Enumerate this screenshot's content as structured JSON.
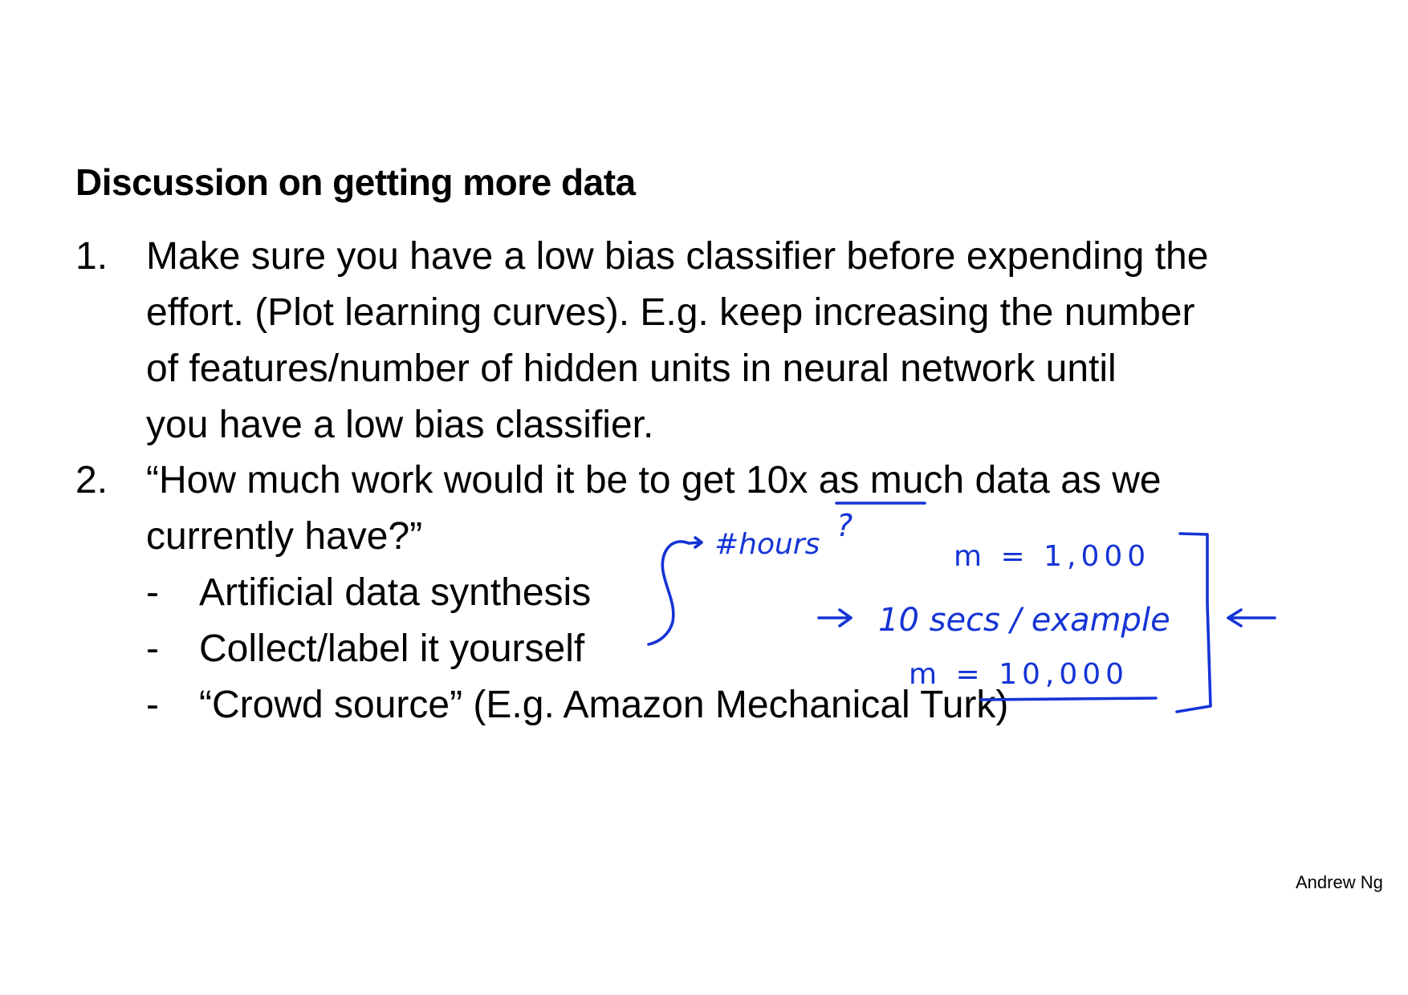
{
  "title": "Discussion on getting more data",
  "items": [
    {
      "number": "1.",
      "lines": [
        "Make sure you have a low bias classifier before expending the",
        "effort. (Plot learning curves). E.g. keep increasing the number",
        "of features/number of hidden units in neural network until",
        "you have a low bias classifier."
      ]
    },
    {
      "number": "2.",
      "lines": [
        "“How much work would it be to get 10x as much data as we",
        "currently have?”"
      ],
      "subitems": [
        {
          "bullet": "-",
          "text": "Artificial data synthesis"
        },
        {
          "bullet": "-",
          "text": "Collect/label it yourself"
        },
        {
          "bullet": "-",
          "text": "“Crowd source” (E.g. Amazon Mechanical Turk)"
        }
      ]
    }
  ],
  "annotations": {
    "hours": "#hours",
    "question": "?",
    "m_current": "m = 1,000",
    "rate": "10 secs / example",
    "m_target": "m = 10,000"
  },
  "footer": "Andrew Ng",
  "colors": {
    "ink": "#1534d6",
    "text": "#000000",
    "background": "#ffffff"
  }
}
